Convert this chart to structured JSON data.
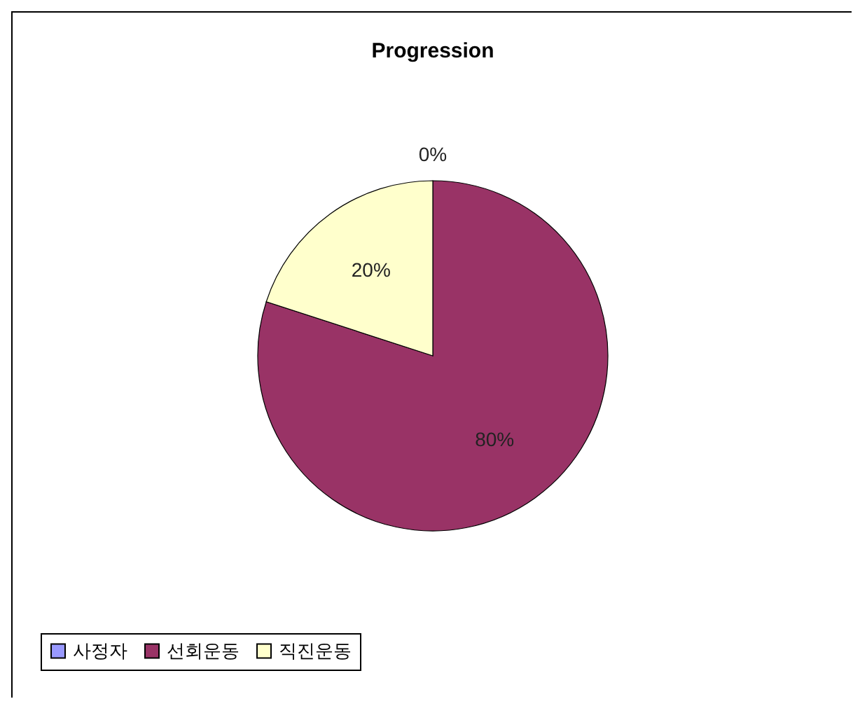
{
  "chart_data": {
    "type": "pie",
    "title": "Progression",
    "categories": [
      "사정자",
      "선회운동",
      "직진운동"
    ],
    "values": [
      0,
      80,
      20
    ],
    "colors": [
      "#9999ff",
      "#993366",
      "#ffffcc"
    ],
    "value_labels": [
      "0%",
      "80%",
      "20%"
    ],
    "legend": "bottom"
  }
}
